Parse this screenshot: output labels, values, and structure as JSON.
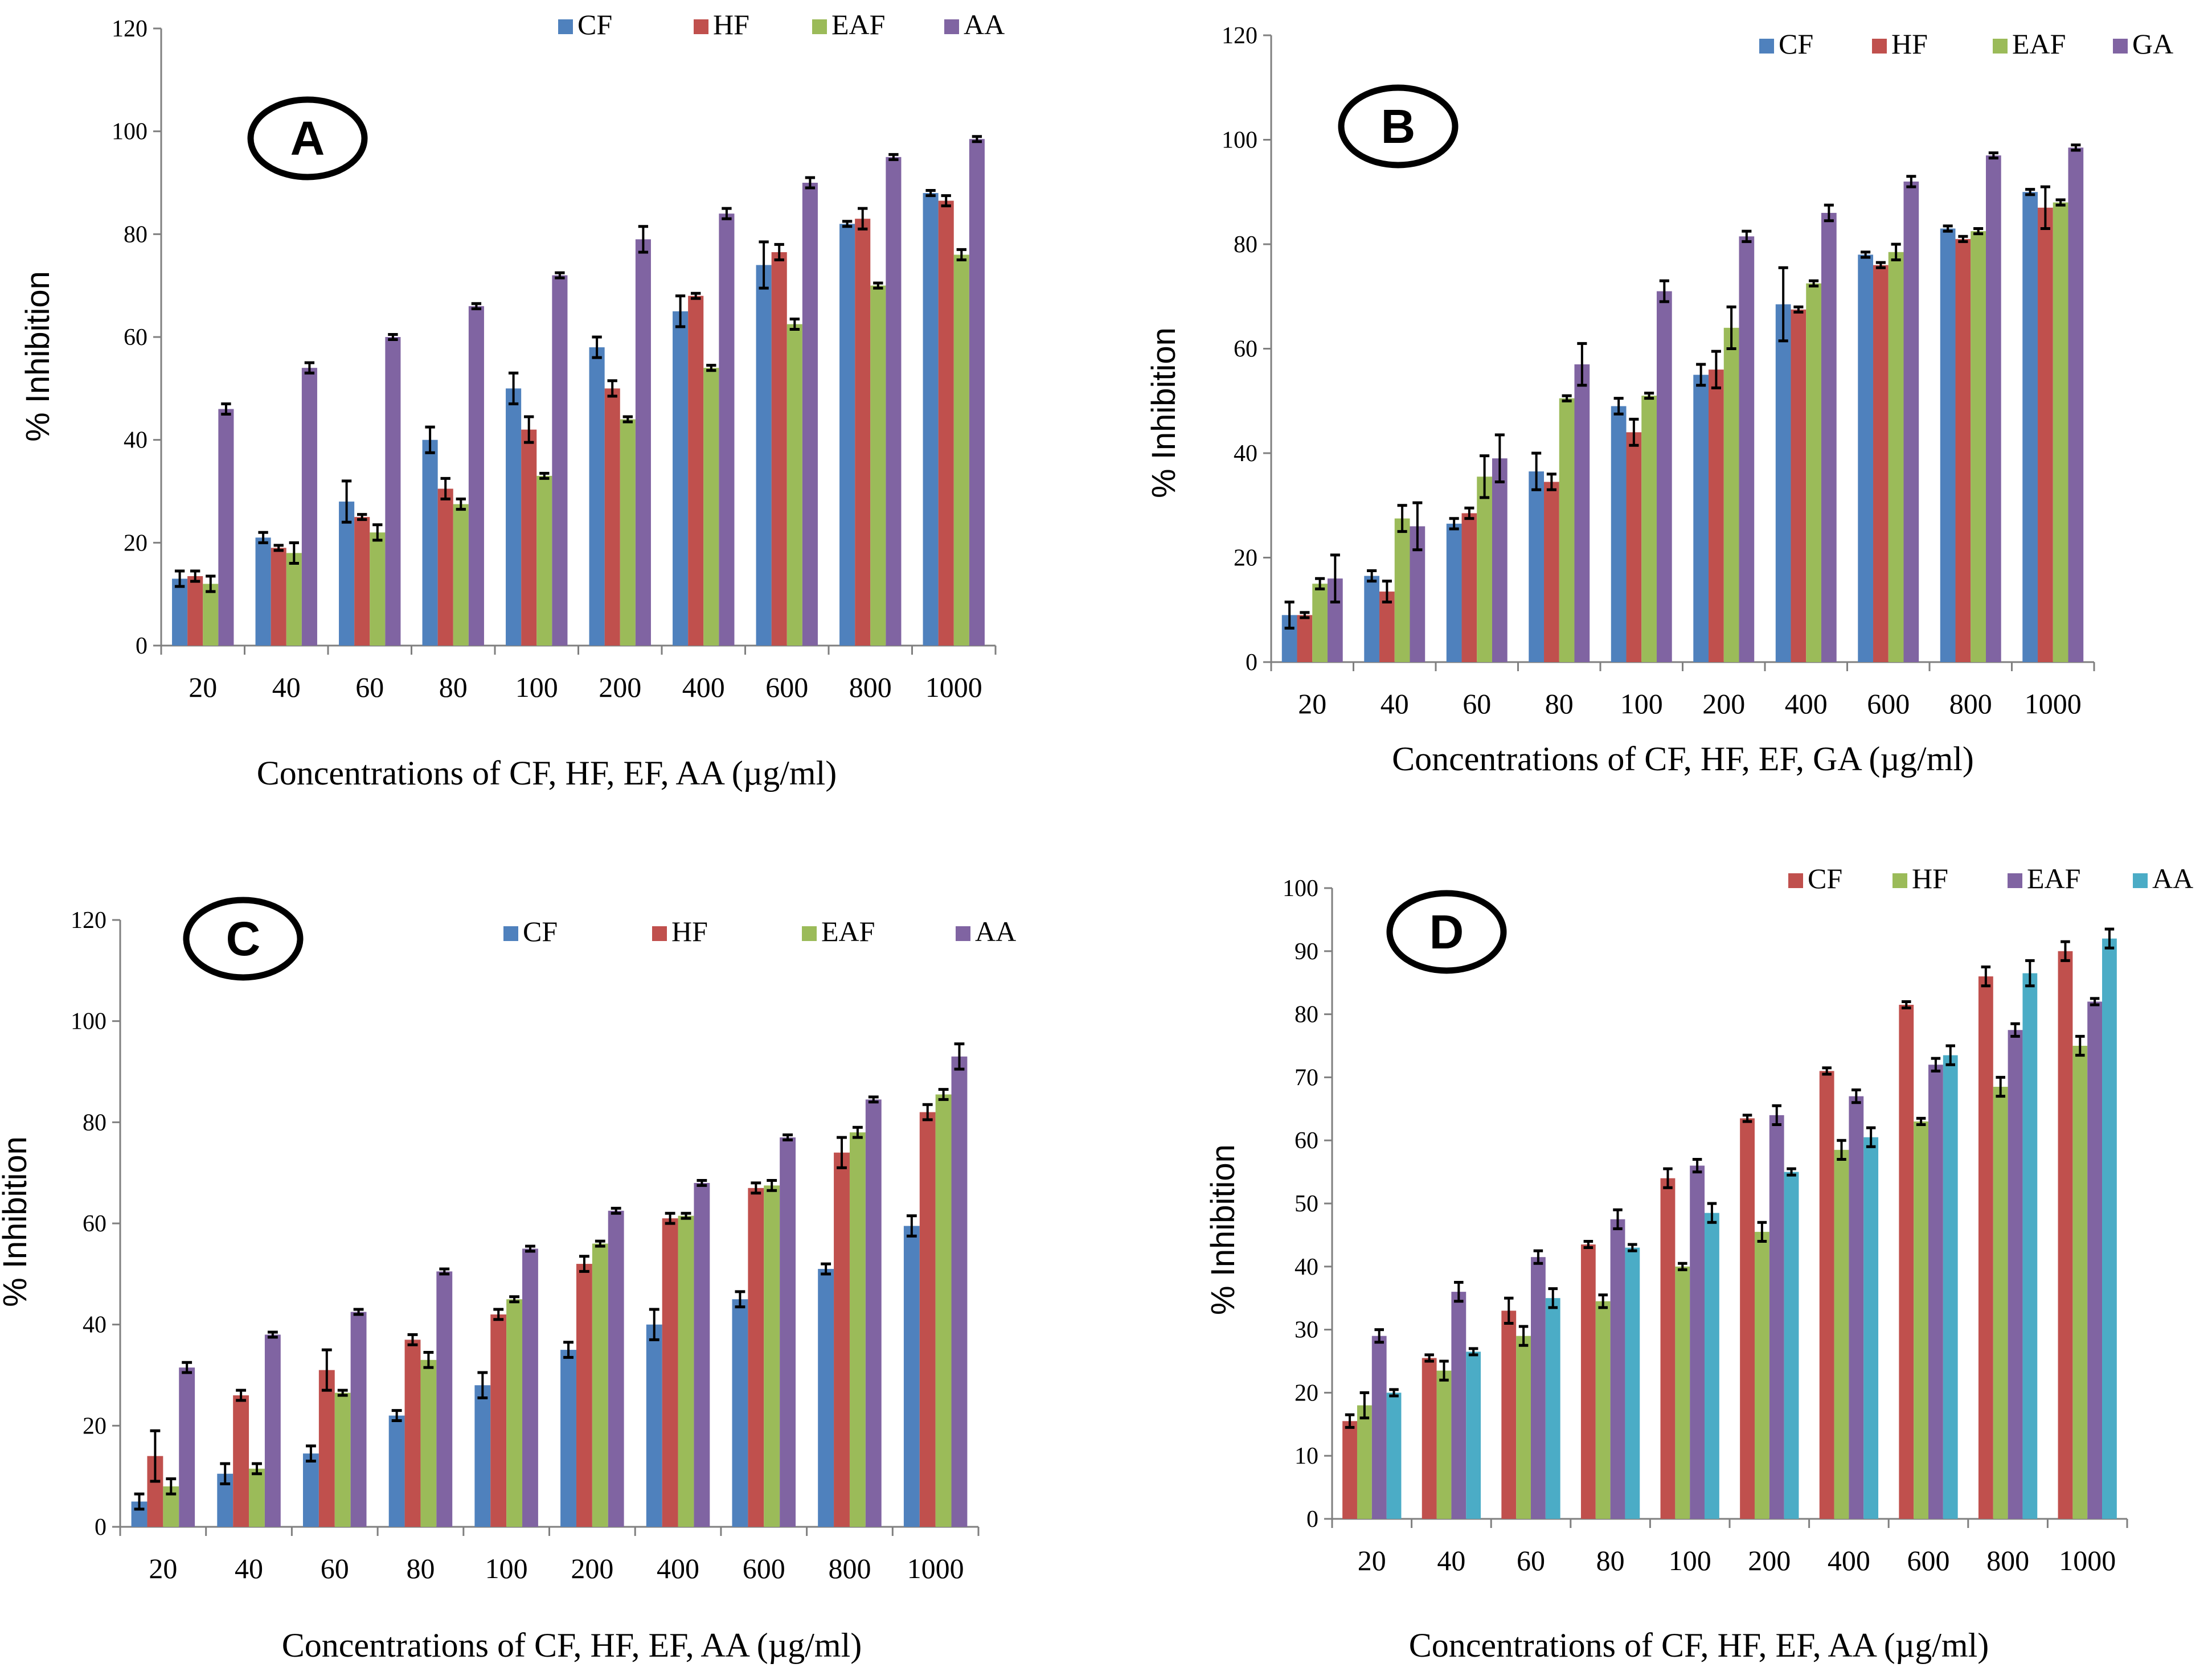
{
  "chart_data": [
    {
      "type": "bar",
      "panel": "A",
      "xlabel": "Concentrations of CF, HF, EF, AA (µg/ml)",
      "ylabel": "% Inhibition",
      "ylim": [
        0,
        120
      ],
      "yticks": [
        0,
        20,
        40,
        60,
        80,
        100,
        120
      ],
      "categories": [
        "20",
        "40",
        "60",
        "80",
        "100",
        "200",
        "400",
        "600",
        "800",
        "1000"
      ],
      "legend_position": "top-right",
      "series": [
        {
          "name": "CF",
          "color": "#4F81BD",
          "values": [
            13,
            21,
            28,
            40,
            50,
            58,
            65,
            74,
            82,
            88
          ],
          "errors": [
            1.5,
            1,
            4,
            2.5,
            3,
            2,
            3,
            4.5,
            0.5,
            0.5
          ]
        },
        {
          "name": "HF",
          "color": "#C0504D",
          "values": [
            13.5,
            19,
            25,
            30.5,
            42,
            50,
            68,
            76.5,
            83,
            86.5
          ],
          "errors": [
            1,
            0.5,
            0.5,
            2,
            2.5,
            1.5,
            0.5,
            1.5,
            2,
            1
          ]
        },
        {
          "name": "EAF",
          "color": "#9BBB59",
          "values": [
            12,
            18,
            22,
            27.5,
            33,
            44,
            54,
            62.5,
            70,
            76
          ],
          "errors": [
            1.5,
            2,
            1.5,
            1,
            0.5,
            0.5,
            0.5,
            1,
            0.5,
            1
          ]
        },
        {
          "name": "AA",
          "color": "#8064A2",
          "values": [
            46,
            54,
            60,
            66,
            72,
            79,
            84,
            90,
            95,
            98.5
          ],
          "errors": [
            1,
            1,
            0.5,
            0.5,
            0.5,
            2.5,
            1,
            1,
            0.5,
            0.5
          ]
        }
      ]
    },
    {
      "type": "bar",
      "panel": "B",
      "xlabel": "Concentrations of CF, HF, EF, GA (µg/ml)",
      "ylabel": "% Inhibition",
      "ylim": [
        0,
        120
      ],
      "yticks": [
        0,
        20,
        40,
        60,
        80,
        100,
        120
      ],
      "categories": [
        "20",
        "40",
        "60",
        "80",
        "100",
        "200",
        "400",
        "600",
        "800",
        "1000"
      ],
      "legend_position": "top-right",
      "series": [
        {
          "name": "CF",
          "color": "#4F81BD",
          "values": [
            9,
            16.5,
            26.5,
            36.5,
            49,
            55,
            68.5,
            78,
            83,
            90
          ],
          "errors": [
            2.5,
            1,
            1,
            3.5,
            1.5,
            2,
            7,
            0.5,
            0.5,
            0.5
          ]
        },
        {
          "name": "HF",
          "color": "#C0504D",
          "values": [
            9,
            13.5,
            28.5,
            34.5,
            44,
            56,
            67.5,
            76,
            81,
            87
          ],
          "errors": [
            0.5,
            2,
            1,
            1.5,
            2.5,
            3.5,
            0.5,
            0.5,
            0.5,
            4
          ]
        },
        {
          "name": "EAF",
          "color": "#9BBB59",
          "values": [
            15,
            27.5,
            35.5,
            50.5,
            51,
            64,
            72.5,
            78.5,
            82.5,
            88
          ],
          "errors": [
            1,
            2.5,
            4,
            0.5,
            0.5,
            4,
            0.5,
            1.5,
            0.5,
            0.5
          ]
        },
        {
          "name": "GA",
          "color": "#8064A2",
          "values": [
            16,
            26,
            39,
            57,
            71,
            81.5,
            86,
            92,
            97,
            98.5
          ],
          "errors": [
            4.5,
            4.5,
            4.5,
            4,
            2,
            1,
            1.5,
            1,
            0.5,
            0.5
          ]
        }
      ]
    },
    {
      "type": "bar",
      "panel": "C",
      "xlabel": "Concentrations of CF, HF, EF, AA (µg/ml)",
      "ylabel": "% Inhibition",
      "ylim": [
        0,
        120
      ],
      "yticks": [
        0,
        20,
        40,
        60,
        80,
        100,
        120
      ],
      "categories": [
        "20",
        "40",
        "60",
        "80",
        "100",
        "200",
        "400",
        "600",
        "800",
        "1000"
      ],
      "legend_position": "top-right",
      "series": [
        {
          "name": "CF",
          "color": "#4F81BD",
          "values": [
            5,
            10.5,
            14.5,
            22,
            28,
            35,
            40,
            45,
            51,
            59.5
          ],
          "errors": [
            1.5,
            2,
            1.5,
            1,
            2.5,
            1.5,
            3,
            1.5,
            1,
            2
          ]
        },
        {
          "name": "HF",
          "color": "#C0504D",
          "values": [
            14,
            26,
            31,
            37,
            42,
            52,
            61,
            67,
            74,
            82
          ],
          "errors": [
            5,
            1,
            4,
            1,
            1,
            1.5,
            1,
            1,
            3,
            1.5
          ]
        },
        {
          "name": "EAF",
          "color": "#9BBB59",
          "values": [
            8,
            11.5,
            26.5,
            33,
            45,
            56,
            61.5,
            67.5,
            78,
            85.5
          ],
          "errors": [
            1.5,
            1,
            0.5,
            1.5,
            0.5,
            0.5,
            0.5,
            1,
            1,
            1
          ]
        },
        {
          "name": "AA",
          "color": "#8064A2",
          "values": [
            31.5,
            38,
            42.5,
            50.5,
            55,
            62.5,
            68,
            77,
            84.5,
            93
          ],
          "errors": [
            1,
            0.5,
            0.5,
            0.5,
            0.5,
            0.5,
            0.5,
            0.5,
            0.5,
            2.5
          ]
        }
      ]
    },
    {
      "type": "bar",
      "panel": "D",
      "xlabel": "Concentrations of CF, HF, EF, AA (µg/ml)",
      "ylabel": "% Inhibition",
      "ylim": [
        0,
        100
      ],
      "yticks": [
        0,
        10,
        20,
        30,
        40,
        50,
        60,
        70,
        80,
        90,
        100
      ],
      "categories": [
        "20",
        "40",
        "60",
        "80",
        "100",
        "200",
        "400",
        "600",
        "800",
        "1000"
      ],
      "legend_position": "top-right",
      "series": [
        {
          "name": "CF",
          "color": "#C0504D",
          "values": [
            15.5,
            25.5,
            33,
            43.5,
            54,
            63.5,
            71,
            81.5,
            86,
            90
          ],
          "errors": [
            1,
            0.5,
            2,
            0.5,
            1.5,
            0.5,
            0.5,
            0.5,
            1.5,
            1.5
          ]
        },
        {
          "name": "HF",
          "color": "#9BBB59",
          "values": [
            18,
            23.5,
            29,
            34.5,
            40,
            45.5,
            58.5,
            63,
            68.5,
            75
          ],
          "errors": [
            2,
            1.5,
            1.5,
            1,
            0.5,
            1.5,
            1.5,
            0.5,
            1.5,
            1.5
          ]
        },
        {
          "name": "EAF",
          "color": "#8064A2",
          "values": [
            29,
            36,
            41.5,
            47.5,
            56,
            64,
            67,
            72,
            77.5,
            82
          ],
          "errors": [
            1,
            1.5,
            1,
            1.5,
            1,
            1.5,
            1,
            1,
            1,
            0.5
          ]
        },
        {
          "name": "AA",
          "color": "#4BACC6",
          "values": [
            20,
            26.5,
            35,
            43,
            48.5,
            55,
            60.5,
            73.5,
            86.5,
            92
          ],
          "errors": [
            0.5,
            0.5,
            1.5,
            0.5,
            1.5,
            0.5,
            1.5,
            1.5,
            2,
            1.5
          ]
        }
      ]
    }
  ]
}
